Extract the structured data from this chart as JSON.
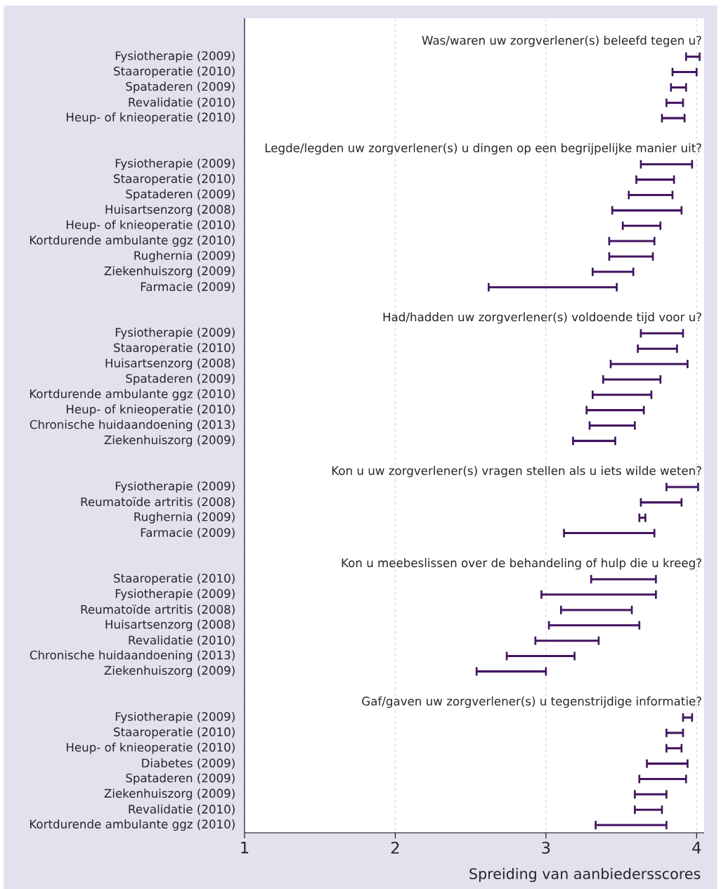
{
  "chart_data": {
    "type": "bar",
    "orientation": "horizontal",
    "xlabel": "Spreiding van aanbiedersscores",
    "categories": [
      null,
      null,
      "Fysiotherapie (2009)",
      "Staaroperatie (2010)",
      "Spataderen (2009)",
      "Revalidatie (2010)",
      "Heup- of knieoperatie (2010)",
      null,
      null,
      "Fysiotherapie (2009)",
      "Staaroperatie (2010)",
      "Spataderen (2009)",
      "Huisartsenzorg (2008)",
      "Heup- of knieoperatie (2010)",
      "Kortdurende ambulante ggz (2010)",
      "Rughernia (2009)",
      "Ziekenhuiszorg (2009)",
      "Farmacie (2009)",
      null,
      null,
      "Fysiotherapie (2009)",
      "Staaroperatie (2010)",
      "Huisartsenzorg (2008)",
      "Spataderen (2009)",
      "Kortdurende ambulante ggz (2010)",
      "Heup- of knieoperatie (2010)",
      "Chronische huidaandoening (2013)",
      "Ziekenhuiszorg (2009)",
      null,
      null,
      "Fysiotherapie (2009)",
      "Reumatoïde artritis (2008)",
      "Rughernia (2009)",
      "Farmacie (2009)",
      null,
      null,
      "Staaroperatie (2010)",
      "Fysiotherapie (2009)",
      "Reumatoïde artritis (2008)",
      "Huisartsenzorg (2008)",
      "Revalidatie (2010)",
      "Chronische huidaandoening (2013)",
      "Ziekenhuiszorg (2009)",
      null,
      null,
      "Fysiotherapie (2009)",
      "Staaroperatie (2010)",
      "Heup- of knieoperatie (2010)",
      "Diabetes (2009)",
      "Spataderen (2009)",
      "Ziekenhuiszorg (2009)",
      "Revalidatie (2010)",
      "Kortdurende ambulante ggz (2010)"
    ],
    "base": [
      null,
      null,
      3.93,
      3.84,
      3.83,
      3.8,
      3.77,
      null,
      null,
      3.63,
      3.6,
      3.55,
      3.44,
      3.51,
      3.42,
      3.42,
      3.31,
      2.62,
      null,
      null,
      3.63,
      3.61,
      3.43,
      3.38,
      3.31,
      3.27,
      3.29,
      3.18,
      null,
      null,
      3.8,
      3.63,
      3.62,
      3.12,
      null,
      null,
      3.3,
      2.97,
      3.1,
      3.02,
      2.93,
      2.74,
      2.54,
      null,
      null,
      3.91,
      3.8,
      3.8,
      3.67,
      3.62,
      3.59,
      3.59,
      3.33
    ],
    "values": [
      null,
      null,
      0.09,
      0.16,
      0.1,
      0.11,
      0.15,
      null,
      null,
      0.34,
      0.25,
      0.29,
      0.46,
      0.25,
      0.3,
      0.29,
      0.27,
      0.85,
      null,
      null,
      0.28,
      0.26,
      0.51,
      0.38,
      0.39,
      0.38,
      0.3,
      0.28,
      null,
      null,
      0.21,
      0.27,
      0.04,
      0.6,
      null,
      null,
      0.43,
      0.76,
      0.47,
      0.6,
      0.42,
      0.45,
      0.46,
      null,
      null,
      0.06,
      0.11,
      0.1,
      0.27,
      0.31,
      0.21,
      0.18,
      0.47
    ],
    "color": "#42145f",
    "xlim": [
      1,
      4.05
    ],
    "xticks": [
      1,
      2,
      3,
      4
    ],
    "grid": "x",
    "annotations": [
      "Was/waren uw zorgverlener(s) beleefd tegen u?",
      "Legde/legden uw zorgverlener(s) u dingen op een begrijpelijke manier uit?",
      "Had/hadden uw zorgverlener(s) voldoende tijd voor u?",
      "Kon u uw zorgverlener(s) vragen stellen als u iets wilde weten?",
      "Kon u meebeslissen over de behandeling of hulp die u kreeg?",
      "Gaf/gaven uw zorgverlener(s) u tegenstrijdige informatie?"
    ]
  }
}
